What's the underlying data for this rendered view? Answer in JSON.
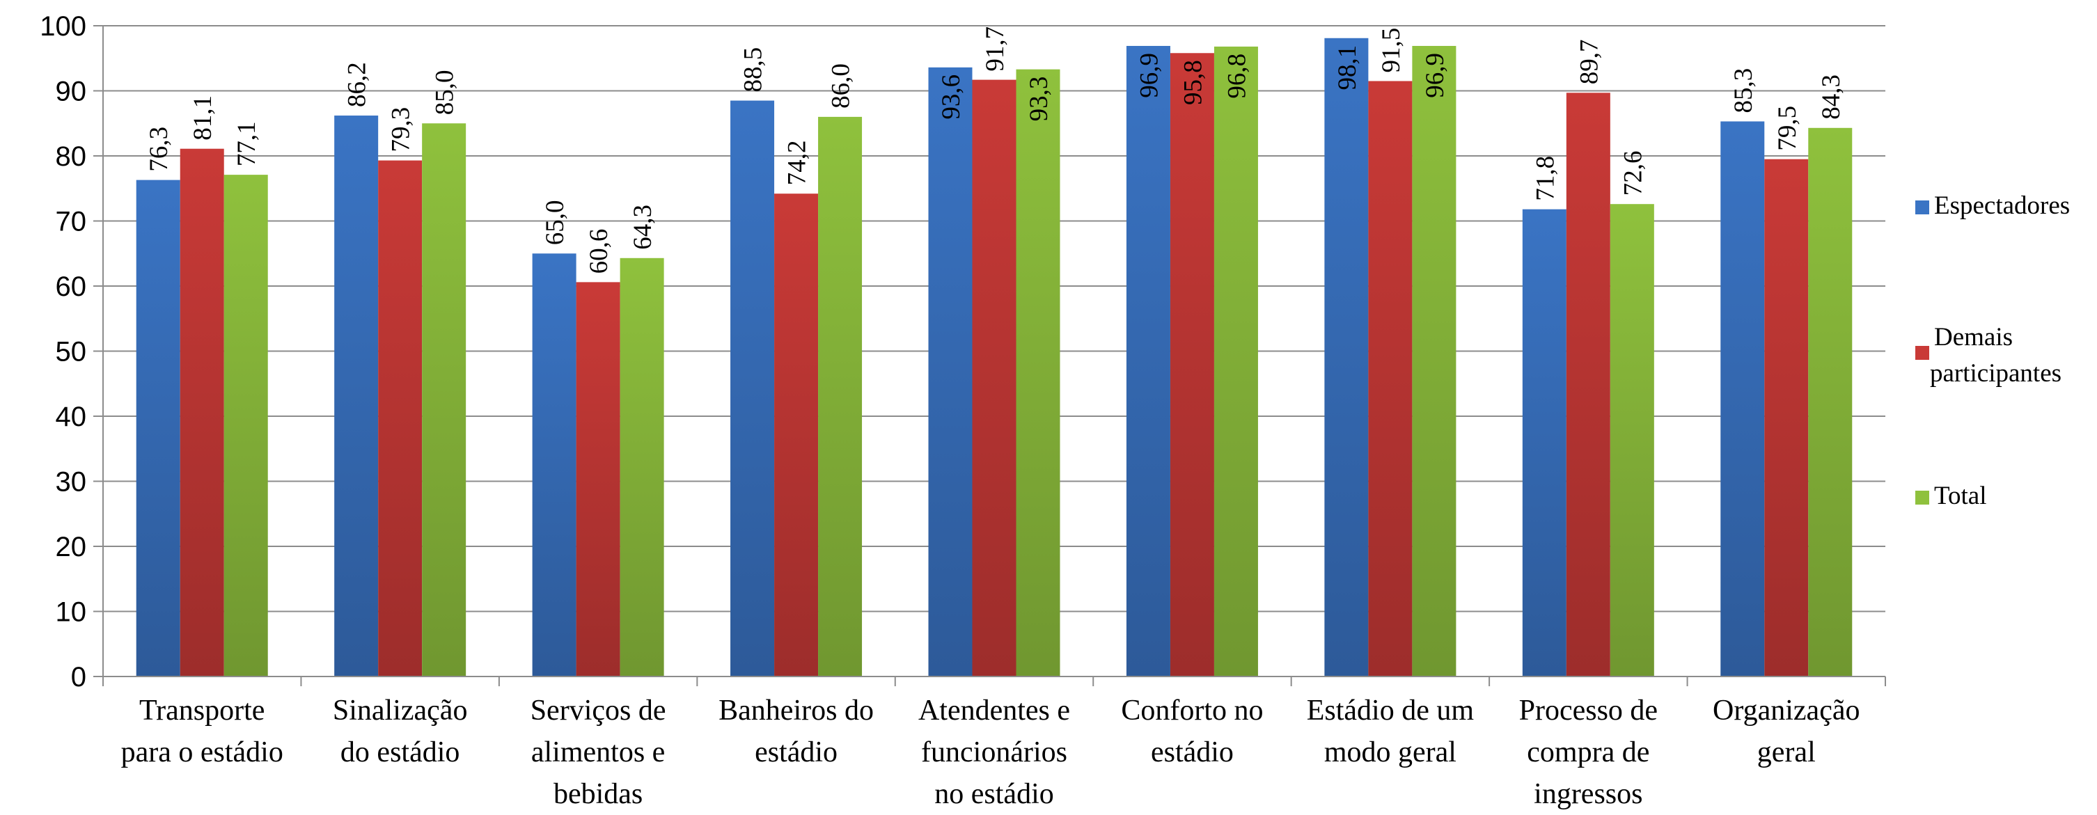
{
  "chart_data": {
    "type": "bar",
    "categories": [
      "Transporte para o estádio",
      "Sinalização do estádio",
      "Serviços de alimentos e bebidas",
      "Banheiros do estádio",
      "Atendentes e funcionários no estádio",
      "Conforto no estádio",
      "Estádio de um modo geral",
      "Processo de compra de ingressos",
      "Organização geral"
    ],
    "category_lines": [
      [
        "Transporte",
        "para o estádio"
      ],
      [
        "Sinalização",
        "do estádio"
      ],
      [
        "Serviços de",
        "alimentos e",
        "bebidas"
      ],
      [
        "Banheiros do",
        "estádio"
      ],
      [
        "Atendentes e",
        "funcionários",
        "no estádio"
      ],
      [
        "Conforto no",
        "estádio"
      ],
      [
        "Estádio de um",
        "modo geral"
      ],
      [
        "Processo de",
        "compra de",
        "ingressos"
      ],
      [
        "Organização",
        "geral"
      ]
    ],
    "series": [
      {
        "name": "Espectadores",
        "legend_lines": [
          "Espectadores"
        ],
        "color": "#3a74c4",
        "values": [
          76.3,
          86.2,
          65.0,
          88.5,
          93.6,
          96.9,
          98.1,
          71.8,
          85.3
        ],
        "labels": [
          "76,3",
          "86,2",
          "65,0",
          "88,5",
          "93,6",
          "96,9",
          "98,1",
          "71,8",
          "85,3"
        ]
      },
      {
        "name": "Demais participantes",
        "legend_lines": [
          "Demais",
          "participantes"
        ],
        "color": "#c93a37",
        "values": [
          81.1,
          79.3,
          60.6,
          74.2,
          91.7,
          95.8,
          91.5,
          89.7,
          79.5
        ],
        "labels": [
          "81,1",
          "79,3",
          "60,6",
          "74,2",
          "91,7",
          "95,8",
          "91,5",
          "89,7",
          "79,5"
        ]
      },
      {
        "name": "Total",
        "legend_lines": [
          "Total"
        ],
        "color": "#8fc13d",
        "values": [
          77.1,
          85.0,
          64.3,
          86.0,
          93.3,
          96.8,
          96.9,
          72.6,
          84.3
        ],
        "labels": [
          "77,1",
          "85,0",
          "64,3",
          "86,0",
          "93,3",
          "96,8",
          "96,9",
          "72,6",
          "84,3"
        ]
      }
    ],
    "ylim": [
      0,
      100
    ],
    "yticks": [
      0,
      10,
      20,
      30,
      40,
      50,
      60,
      70,
      80,
      90,
      100
    ],
    "grid": true,
    "legend_position": "right",
    "title": "",
    "xlabel": "",
    "ylabel": ""
  }
}
